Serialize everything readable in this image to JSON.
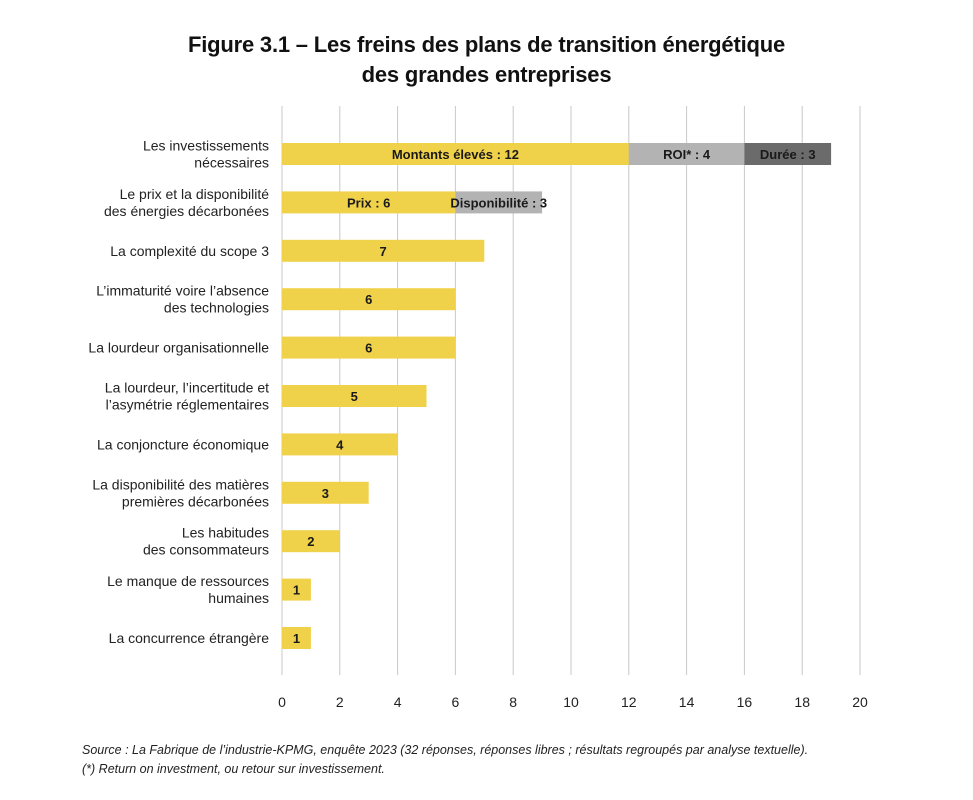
{
  "figure": {
    "title_line1": "Figure 3.1 – Les freins des plans de transition énergétique",
    "title_line2": "des grandes entreprises",
    "source_line": "Source : La Fabrique de l’industrie-KPMG, enquête 2023 (32 réponses, réponses libres ; résultats regroupés par analyse textuelle).",
    "footnote_line": "(*) Return on investment, ou retour sur investissement."
  },
  "chart_data": {
    "type": "bar",
    "orientation": "horizontal",
    "stacked": true,
    "xlim": [
      0,
      20
    ],
    "xticks": [
      "0",
      "2",
      "4",
      "6",
      "8",
      "10",
      "12",
      "14",
      "16",
      "18",
      "20"
    ],
    "grid": "vertical",
    "colors": {
      "primary": "#f0d24a",
      "secondary": "#b3b3b3",
      "tertiary": "#6b6b6b",
      "grid": "#c8c8c8"
    },
    "bars": [
      {
        "label": [
          "Les investissements",
          "nécessaires"
        ],
        "segments": [
          {
            "value": 12,
            "text": "Montants élevés : 12",
            "color": "#f0d24a"
          },
          {
            "value": 4,
            "text": "ROI* : 4",
            "color": "#b3b3b3"
          },
          {
            "value": 3,
            "text": "Durée : 3",
            "color": "#6b6b6b"
          }
        ]
      },
      {
        "label": [
          "Le prix et la disponibilité",
          "des énergies décarbonées"
        ],
        "segments": [
          {
            "value": 6,
            "text": "Prix : 6",
            "color": "#f0d24a"
          },
          {
            "value": 3,
            "text": "Disponibilité : 3",
            "color": "#b3b3b3"
          }
        ]
      },
      {
        "label": [
          "La complexité du scope 3"
        ],
        "segments": [
          {
            "value": 7,
            "text": "7",
            "color": "#f0d24a"
          }
        ]
      },
      {
        "label": [
          "L’immaturité voire l’absence",
          "des technologies"
        ],
        "segments": [
          {
            "value": 6,
            "text": "6",
            "color": "#f0d24a"
          }
        ]
      },
      {
        "label": [
          "La lourdeur organisationnelle"
        ],
        "segments": [
          {
            "value": 6,
            "text": "6",
            "color": "#f0d24a"
          }
        ]
      },
      {
        "label": [
          "La lourdeur, l’incertitude et",
          "l’asymétrie réglementaires"
        ],
        "segments": [
          {
            "value": 5,
            "text": "5",
            "color": "#f0d24a"
          }
        ]
      },
      {
        "label": [
          "La conjoncture économique"
        ],
        "segments": [
          {
            "value": 4,
            "text": "4",
            "color": "#f0d24a"
          }
        ]
      },
      {
        "label": [
          "La disponibilité des matières",
          "premières décarbonées"
        ],
        "segments": [
          {
            "value": 3,
            "text": "3",
            "color": "#f0d24a"
          }
        ]
      },
      {
        "label": [
          "Les habitudes",
          "des consommateurs"
        ],
        "segments": [
          {
            "value": 2,
            "text": "2",
            "color": "#f0d24a"
          }
        ]
      },
      {
        "label": [
          "Le manque de ressources",
          "humaines"
        ],
        "segments": [
          {
            "value": 1,
            "text": "1",
            "color": "#f0d24a"
          }
        ]
      },
      {
        "label": [
          "La concurrence étrangère"
        ],
        "segments": [
          {
            "value": 1,
            "text": "1",
            "color": "#f0d24a"
          }
        ]
      }
    ]
  }
}
